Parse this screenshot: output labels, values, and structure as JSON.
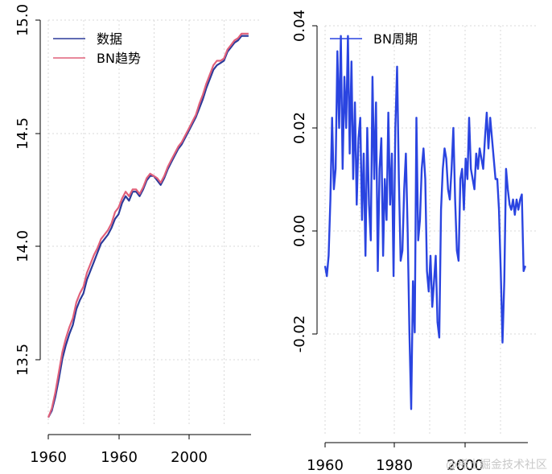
{
  "colors": {
    "data": "#2b3a9a",
    "trend": "#e0607a",
    "cycle": "#2a44e0"
  },
  "watermark": "@稀土掘金技术社区",
  "chart_data": [
    {
      "type": "line",
      "ylim": [
        13.2,
        15.0
      ],
      "xlim": [
        1960,
        2020
      ],
      "yticks": [
        "13.5",
        "14.0",
        "14.5",
        "15.0"
      ],
      "xticks": [
        "1960",
        "1960",
        "2000"
      ],
      "grid": true,
      "legend_position": "top-left",
      "series": [
        {
          "name": "数据",
          "color": "#2b3a9a",
          "x": [
            1960,
            1961,
            1962,
            1963,
            1964,
            1965,
            1966,
            1967,
            1968,
            1969,
            1970,
            1971,
            1972,
            1973,
            1974,
            1975,
            1976,
            1977,
            1978,
            1979,
            1980,
            1981,
            1982,
            1983,
            1984,
            1985,
            1986,
            1987,
            1988,
            1989,
            1990,
            1991,
            1992,
            1993,
            1994,
            1995,
            1996,
            1997,
            1998,
            1999,
            2000,
            2001,
            2002,
            2003,
            2004,
            2005,
            2006,
            2007,
            2008,
            2009,
            2010,
            2011,
            2012,
            2013,
            2014,
            2015,
            2016,
            2017
          ],
          "values": [
            13.24,
            13.27,
            13.33,
            13.41,
            13.5,
            13.56,
            13.61,
            13.65,
            13.72,
            13.76,
            13.79,
            13.85,
            13.89,
            13.93,
            13.97,
            14.01,
            14.03,
            14.05,
            14.08,
            14.12,
            14.14,
            14.19,
            14.22,
            14.2,
            14.24,
            14.24,
            14.22,
            14.25,
            14.29,
            14.31,
            14.31,
            14.29,
            14.27,
            14.3,
            14.34,
            14.37,
            14.4,
            14.43,
            14.45,
            14.48,
            14.51,
            14.54,
            14.57,
            14.61,
            14.65,
            14.7,
            14.74,
            14.78,
            14.8,
            14.81,
            14.82,
            14.86,
            14.88,
            14.9,
            14.91,
            14.93,
            14.93,
            14.93
          ]
        },
        {
          "name": "BN趋势",
          "color": "#e0607a",
          "x": [
            1960,
            1961,
            1962,
            1963,
            1964,
            1965,
            1966,
            1967,
            1968,
            1969,
            1970,
            1971,
            1972,
            1973,
            1974,
            1975,
            1976,
            1977,
            1978,
            1979,
            1980,
            1981,
            1982,
            1983,
            1984,
            1985,
            1986,
            1987,
            1988,
            1989,
            1990,
            1991,
            1992,
            1993,
            1994,
            1995,
            1996,
            1997,
            1998,
            1999,
            2000,
            2001,
            2002,
            2003,
            2004,
            2005,
            2006,
            2007,
            2008,
            2009,
            2010,
            2011,
            2012,
            2013,
            2014,
            2015,
            2016,
            2017
          ],
          "values": [
            13.24,
            13.28,
            13.35,
            13.44,
            13.53,
            13.59,
            13.64,
            13.68,
            13.75,
            13.79,
            13.82,
            13.88,
            13.92,
            13.96,
            13.99,
            14.03,
            14.05,
            14.07,
            14.1,
            14.15,
            14.17,
            14.21,
            14.24,
            14.22,
            14.25,
            14.25,
            14.23,
            14.26,
            14.3,
            14.32,
            14.31,
            14.3,
            14.28,
            14.31,
            14.35,
            14.38,
            14.41,
            14.44,
            14.46,
            14.49,
            14.52,
            14.55,
            14.58,
            14.63,
            14.67,
            14.72,
            14.76,
            14.8,
            14.82,
            14.82,
            14.83,
            14.87,
            14.89,
            14.91,
            14.92,
            14.94,
            14.94,
            14.94
          ]
        }
      ]
    },
    {
      "type": "line",
      "ylim": [
        -0.04,
        0.04
      ],
      "xlim": [
        1960,
        2020
      ],
      "yticks": [
        "-0.02",
        "0.00",
        "0.02",
        "0.04"
      ],
      "xticks": [
        "1960",
        "1980",
        "2000"
      ],
      "grid": true,
      "legend_position": "top-left",
      "series": [
        {
          "name": "BN周期",
          "color": "#2a44e0",
          "x": [
            1960.0,
            1960.5,
            1961.0,
            1961.5,
            1962.0,
            1962.5,
            1963.0,
            1963.5,
            1964.0,
            1964.5,
            1965.0,
            1965.5,
            1966.0,
            1966.5,
            1967.0,
            1967.5,
            1968.0,
            1968.5,
            1969.0,
            1969.5,
            1970.0,
            1970.5,
            1971.0,
            1971.5,
            1972.0,
            1972.5,
            1973.0,
            1973.5,
            1974.0,
            1974.5,
            1975.0,
            1975.5,
            1976.0,
            1976.5,
            1977.0,
            1977.5,
            1978.0,
            1978.5,
            1979.0,
            1979.5,
            1980.0,
            1980.5,
            1981.0,
            1981.5,
            1982.0,
            1982.5,
            1983.0,
            1983.5,
            1984.0,
            1984.5,
            1985.0,
            1985.5,
            1986.0,
            1986.5,
            1987.0,
            1987.5,
            1988.0,
            1988.5,
            1989.0,
            1989.5,
            1990.0,
            1990.5,
            1991.0,
            1991.5,
            1992.0,
            1992.5,
            1993.0,
            1993.5,
            1994.0,
            1994.5,
            1995.0,
            1995.5,
            1996.0,
            1996.5,
            1997.0,
            1997.5,
            1998.0,
            1998.5,
            1999.0,
            1999.5,
            2000.0,
            2000.5,
            2001.0,
            2001.5,
            2002.0,
            2002.5,
            2003.0,
            2003.5,
            2004.0,
            2004.5,
            2005.0,
            2005.5,
            2006.0,
            2006.5,
            2007.0,
            2007.5,
            2008.0,
            2008.5,
            2009.0,
            2009.5,
            2010.0,
            2010.5,
            2011.0,
            2011.5,
            2012.0,
            2012.5,
            2013.0,
            2013.5,
            2014.0,
            2014.5,
            2015.0,
            2015.5,
            2016.0,
            2016.5,
            2017.0
          ],
          "values": [
            -0.007,
            -0.009,
            -0.005,
            0.006,
            0.022,
            0.008,
            0.012,
            0.035,
            0.02,
            0.038,
            0.012,
            0.03,
            0.02,
            0.038,
            0.015,
            0.033,
            0.01,
            0.025,
            0.005,
            0.018,
            0.022,
            0.002,
            0.015,
            -0.005,
            0.02,
            0.005,
            -0.002,
            0.03,
            0.01,
            0.025,
            -0.008,
            0.012,
            0.018,
            -0.005,
            0.01,
            0.002,
            0.023,
            0.005,
            0.015,
            -0.009,
            0.02,
            0.032,
            0.01,
            -0.006,
            -0.004,
            0.008,
            0.015,
            0.0,
            -0.02,
            -0.035,
            -0.01,
            -0.02,
            0.022,
            -0.002,
            0.002,
            0.012,
            0.016,
            0.01,
            -0.008,
            -0.012,
            -0.005,
            -0.015,
            -0.01,
            -0.005,
            -0.018,
            -0.021,
            0.004,
            0.012,
            0.016,
            0.014,
            0.008,
            0.006,
            0.012,
            0.02,
            0.006,
            -0.004,
            -0.006,
            0.01,
            0.012,
            0.004,
            0.014,
            0.01,
            0.022,
            0.012,
            0.01,
            0.008,
            0.015,
            0.012,
            0.016,
            0.014,
            0.012,
            0.018,
            0.023,
            0.016,
            0.022,
            0.018,
            0.014,
            0.01,
            0.01,
            0.004,
            -0.008,
            -0.022,
            -0.01,
            0.012,
            0.008,
            0.005,
            0.004,
            0.006,
            0.003,
            0.006,
            0.004,
            0.006,
            0.007,
            -0.008,
            -0.007
          ]
        }
      ]
    }
  ]
}
